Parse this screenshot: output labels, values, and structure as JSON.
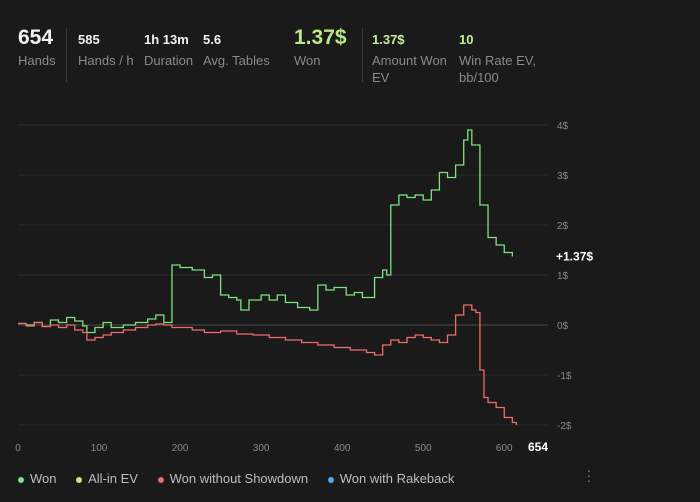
{
  "stats": [
    {
      "value": "654",
      "label": "Hands"
    },
    {
      "value": "585",
      "label": "Hands / h"
    },
    {
      "value": "1h 13m",
      "label": "Duration"
    },
    {
      "value": "5.6",
      "label": "Avg. Tables"
    },
    {
      "value": "1.37$",
      "label": "Won"
    },
    {
      "value": "1.37$",
      "label": "Amount Won EV"
    },
    {
      "value": "10",
      "label": "Win Rate EV, bb/100"
    }
  ],
  "colors": {
    "won": "#7ee27e",
    "allin_ev": "#d8e36b",
    "no_showdown": "#f06b6b",
    "rakeback": "#4fa8e8"
  },
  "chart_data": {
    "type": "line",
    "x_ticks": [
      "0",
      "100",
      "200",
      "300",
      "400",
      "500",
      "600"
    ],
    "x_end_label": "654",
    "y_ticks": [
      "4$",
      "3$",
      "2$",
      "1$",
      "0$",
      "-1$",
      "-2$"
    ],
    "xlim": [
      0,
      654
    ],
    "ylim": [
      -2,
      4
    ],
    "end_value_label": "+1.37$",
    "series": [
      {
        "name": "Won",
        "color": "#7ee27e",
        "points": [
          [
            0,
            0.03
          ],
          [
            10,
            0.0
          ],
          [
            20,
            0.05
          ],
          [
            30,
            -0.03
          ],
          [
            40,
            0.1
          ],
          [
            50,
            0.05
          ],
          [
            60,
            0.15
          ],
          [
            70,
            0.08
          ],
          [
            80,
            -0.02
          ],
          [
            85,
            -0.15
          ],
          [
            95,
            -0.05
          ],
          [
            105,
            0.05
          ],
          [
            115,
            -0.05
          ],
          [
            130,
            0.0
          ],
          [
            145,
            0.05
          ],
          [
            160,
            0.12
          ],
          [
            170,
            0.2
          ],
          [
            180,
            0.05
          ],
          [
            190,
            1.2
          ],
          [
            200,
            1.15
          ],
          [
            215,
            1.1
          ],
          [
            230,
            0.95
          ],
          [
            240,
            1.0
          ],
          [
            250,
            0.6
          ],
          [
            260,
            0.55
          ],
          [
            270,
            0.5
          ],
          [
            275,
            0.3
          ],
          [
            285,
            0.5
          ],
          [
            300,
            0.6
          ],
          [
            310,
            0.5
          ],
          [
            320,
            0.6
          ],
          [
            330,
            0.45
          ],
          [
            345,
            0.35
          ],
          [
            360,
            0.3
          ],
          [
            370,
            0.8
          ],
          [
            380,
            0.7
          ],
          [
            390,
            0.75
          ],
          [
            405,
            0.6
          ],
          [
            415,
            0.65
          ],
          [
            425,
            0.55
          ],
          [
            440,
            0.95
          ],
          [
            450,
            1.1
          ],
          [
            455,
            1.0
          ],
          [
            460,
            2.4
          ],
          [
            470,
            2.6
          ],
          [
            480,
            2.55
          ],
          [
            490,
            2.6
          ],
          [
            500,
            2.5
          ],
          [
            510,
            2.7
          ],
          [
            520,
            3.05
          ],
          [
            530,
            2.95
          ],
          [
            540,
            3.2
          ],
          [
            550,
            3.7
          ],
          [
            555,
            3.9
          ],
          [
            560,
            3.6
          ],
          [
            570,
            2.4
          ],
          [
            580,
            1.75
          ],
          [
            590,
            1.6
          ],
          [
            600,
            1.45
          ],
          [
            610,
            1.37
          ]
        ]
      },
      {
        "name": "Won without Showdown",
        "color": "#f06b6b",
        "points": [
          [
            0,
            0.03
          ],
          [
            10,
            -0.02
          ],
          [
            20,
            0.05
          ],
          [
            30,
            -0.03
          ],
          [
            40,
            0.0
          ],
          [
            50,
            -0.05
          ],
          [
            60,
            0.0
          ],
          [
            70,
            -0.1
          ],
          [
            80,
            -0.15
          ],
          [
            85,
            -0.3
          ],
          [
            95,
            -0.25
          ],
          [
            105,
            -0.2
          ],
          [
            115,
            -0.15
          ],
          [
            130,
            -0.1
          ],
          [
            145,
            -0.05
          ],
          [
            160,
            0.0
          ],
          [
            170,
            0.02
          ],
          [
            180,
            0.0
          ],
          [
            190,
            -0.05
          ],
          [
            200,
            -0.05
          ],
          [
            215,
            -0.1
          ],
          [
            230,
            -0.15
          ],
          [
            250,
            -0.12
          ],
          [
            270,
            -0.18
          ],
          [
            290,
            -0.2
          ],
          [
            310,
            -0.25
          ],
          [
            330,
            -0.3
          ],
          [
            350,
            -0.35
          ],
          [
            370,
            -0.4
          ],
          [
            390,
            -0.45
          ],
          [
            410,
            -0.5
          ],
          [
            430,
            -0.55
          ],
          [
            440,
            -0.6
          ],
          [
            450,
            -0.4
          ],
          [
            460,
            -0.3
          ],
          [
            470,
            -0.35
          ],
          [
            480,
            -0.25
          ],
          [
            490,
            -0.2
          ],
          [
            500,
            -0.25
          ],
          [
            510,
            -0.3
          ],
          [
            520,
            -0.35
          ],
          [
            530,
            -0.2
          ],
          [
            540,
            0.2
          ],
          [
            550,
            0.4
          ],
          [
            560,
            0.3
          ],
          [
            565,
            0.25
          ],
          [
            570,
            -0.9
          ],
          [
            575,
            -1.45
          ],
          [
            580,
            -1.55
          ],
          [
            590,
            -1.65
          ],
          [
            600,
            -1.85
          ],
          [
            610,
            -1.95
          ],
          [
            615,
            -2.0
          ]
        ]
      }
    ]
  },
  "legend": [
    {
      "label": "Won",
      "color": "#7ee27e"
    },
    {
      "label": "All-in EV",
      "color": "#d8e36b"
    },
    {
      "label": "Won without Showdown",
      "color": "#f06b6b"
    },
    {
      "label": "Won with Rakeback",
      "color": "#4fa8e8"
    }
  ],
  "menu_icon": "more-vertical-icon"
}
